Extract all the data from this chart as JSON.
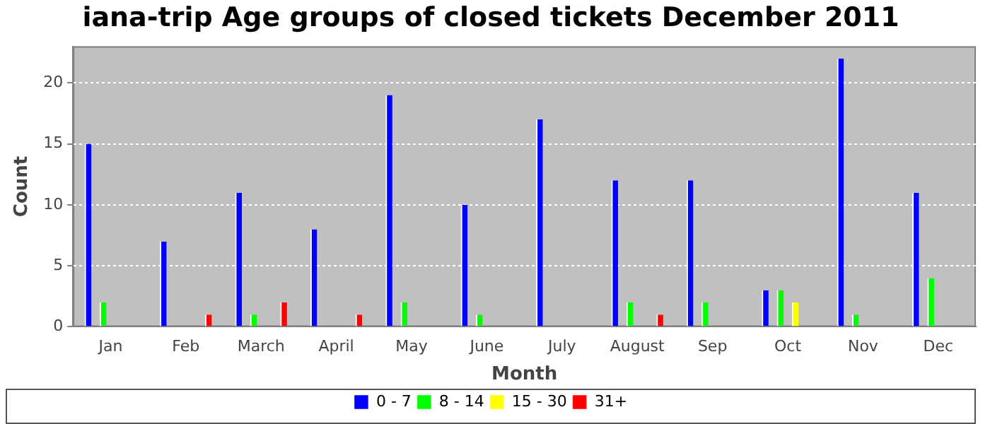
{
  "chart_data": {
    "type": "bar",
    "title": "iana-trip Age groups of closed tickets December 2011",
    "xlabel": "Month",
    "ylabel": "Count",
    "categories": [
      "Jan",
      "Feb",
      "March",
      "April",
      "May",
      "June",
      "July",
      "August",
      "Sep",
      "Oct",
      "Nov",
      "Dec"
    ],
    "series": [
      {
        "name": "0 - 7",
        "color": "#0000ff",
        "values": [
          15,
          7,
          11,
          8,
          19,
          10,
          17,
          12,
          12,
          3,
          22,
          11
        ]
      },
      {
        "name": "8 - 14",
        "color": "#00ff00",
        "values": [
          2,
          null,
          1,
          null,
          2,
          1,
          null,
          2,
          2,
          3,
          1,
          4
        ]
      },
      {
        "name": "15 - 30",
        "color": "#ffff00",
        "values": [
          null,
          null,
          null,
          null,
          null,
          null,
          null,
          null,
          null,
          2,
          null,
          null
        ]
      },
      {
        "name": "31+",
        "color": "#ff0000",
        "values": [
          null,
          1,
          2,
          1,
          null,
          null,
          null,
          1,
          null,
          null,
          null,
          null
        ]
      }
    ],
    "ylim": [
      0,
      23
    ],
    "yticks": [
      0,
      5,
      10,
      15,
      20
    ],
    "grid": "y",
    "legend": "bottom"
  }
}
